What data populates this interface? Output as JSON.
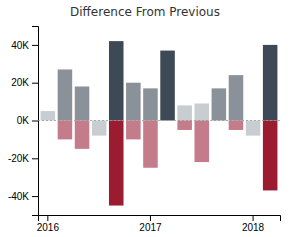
{
  "chart_data": {
    "type": "bar",
    "title": "Difference From Previous",
    "stacked": true,
    "categories": [
      "2016",
      null,
      null,
      null,
      null,
      null,
      "2017",
      null,
      null,
      null,
      null,
      null,
      "2018",
      null
    ],
    "series": [
      {
        "values": [
          5000,
          27000,
          18000,
          null,
          42000,
          20000,
          17000,
          37000,
          8000,
          9000,
          17000,
          24000,
          null,
          40000
        ],
        "colors": [
          "#c8cdd1",
          "#8a9199",
          "#8a9199",
          null,
          "#3d4a56",
          "#8a9199",
          "#8a9199",
          "#3d4a56",
          "#c8cdd1",
          "#c8cdd1",
          "#8a9199",
          "#8a9199",
          null,
          "#3d4a56"
        ]
      },
      {
        "values": [
          null,
          -10000,
          -15000,
          -8000,
          -45000,
          -10000,
          -25000,
          null,
          -5000,
          -22000,
          null,
          -5000,
          -8000,
          -37000
        ],
        "colors": [
          null,
          "#c47b8a",
          "#c47b8a",
          "#c8cdd1",
          "#9b1b30",
          "#c47b8a",
          "#c47b8a",
          null,
          "#c47b8a",
          "#c47b8a",
          null,
          "#c47b8a",
          "#c8cdd1",
          "#9b1b30"
        ]
      }
    ],
    "ylim": [
      -50000,
      50000
    ],
    "yticks": [
      {
        "value": -40000,
        "label": "-40K"
      },
      {
        "value": -20000,
        "label": "-20K"
      },
      {
        "value": 0,
        "label": "0K"
      },
      {
        "value": 20000,
        "label": "20K"
      },
      {
        "value": 40000,
        "label": "40K"
      }
    ]
  }
}
